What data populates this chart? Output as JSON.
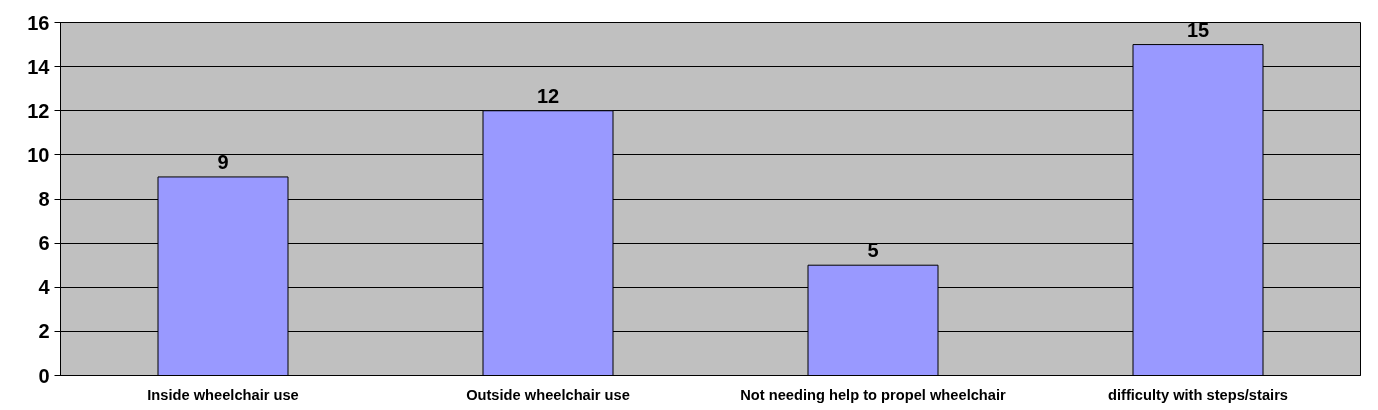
{
  "chart_data": {
    "type": "bar",
    "categories": [
      "Inside wheelchair use",
      "Outside wheelchair use",
      "Not needing help to propel wheelchair",
      "difficulty with steps/stairs"
    ],
    "values": [
      9,
      12,
      5,
      15
    ],
    "color": "#9999ff",
    "ylim": [
      0,
      16
    ],
    "yticks": [
      0,
      2,
      4,
      6,
      8,
      10,
      12,
      14,
      16
    ],
    "grid": "y",
    "data_labels": true
  }
}
